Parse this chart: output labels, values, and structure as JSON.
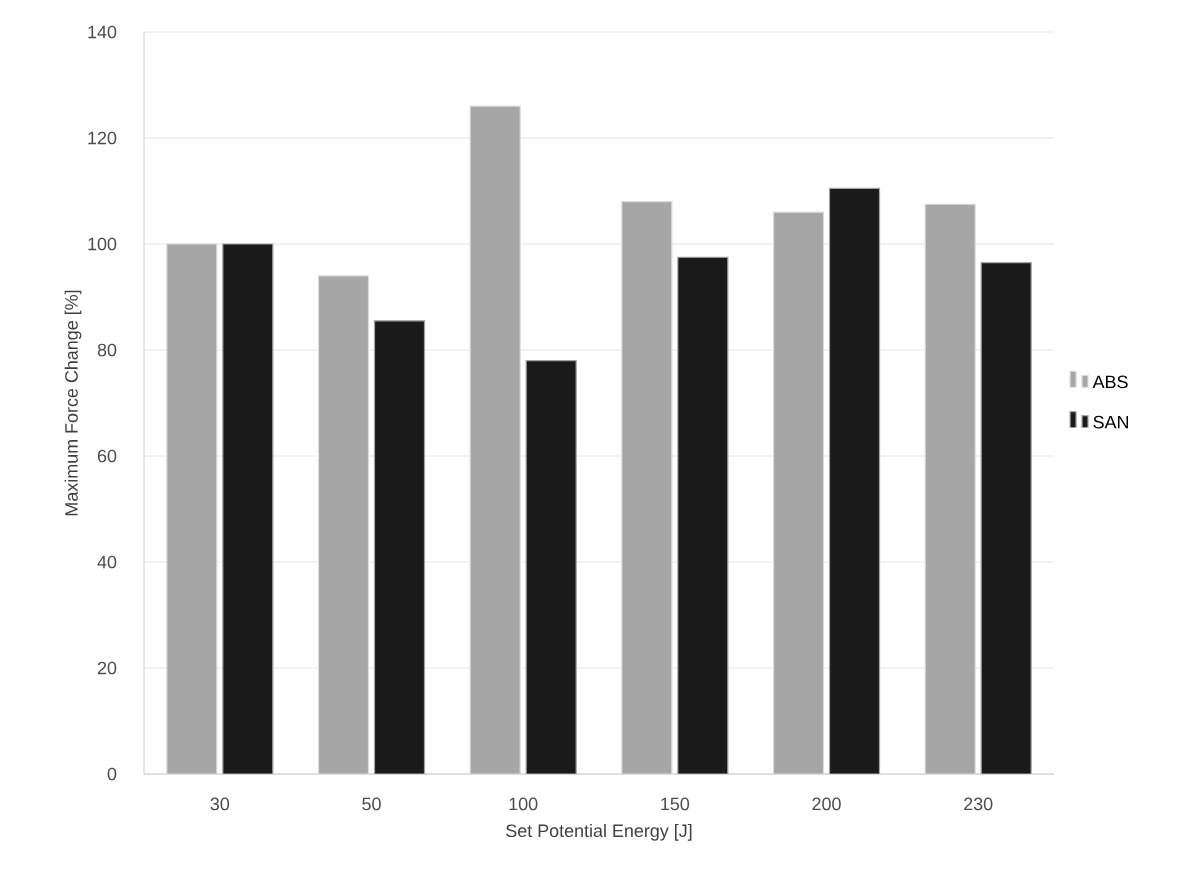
{
  "chart_data": {
    "type": "bar",
    "xlabel": "Set Potential Energy [J]",
    "ylabel": "Maximum Force Change [%]",
    "categories": [
      "30",
      "50",
      "100",
      "150",
      "200",
      "230"
    ],
    "series": [
      {
        "name": "ABS",
        "color": "#a6a6a6",
        "values": [
          100,
          94,
          126,
          108,
          106,
          107.5
        ]
      },
      {
        "name": "SAN",
        "color": "#1a1a1a",
        "values": [
          100,
          85.5,
          78,
          97.5,
          110.5,
          96.5
        ]
      }
    ],
    "ylim": [
      0,
      140
    ],
    "yticks": [
      0,
      20,
      40,
      60,
      80,
      100,
      120,
      140
    ],
    "grid": "y",
    "legend": "right"
  }
}
